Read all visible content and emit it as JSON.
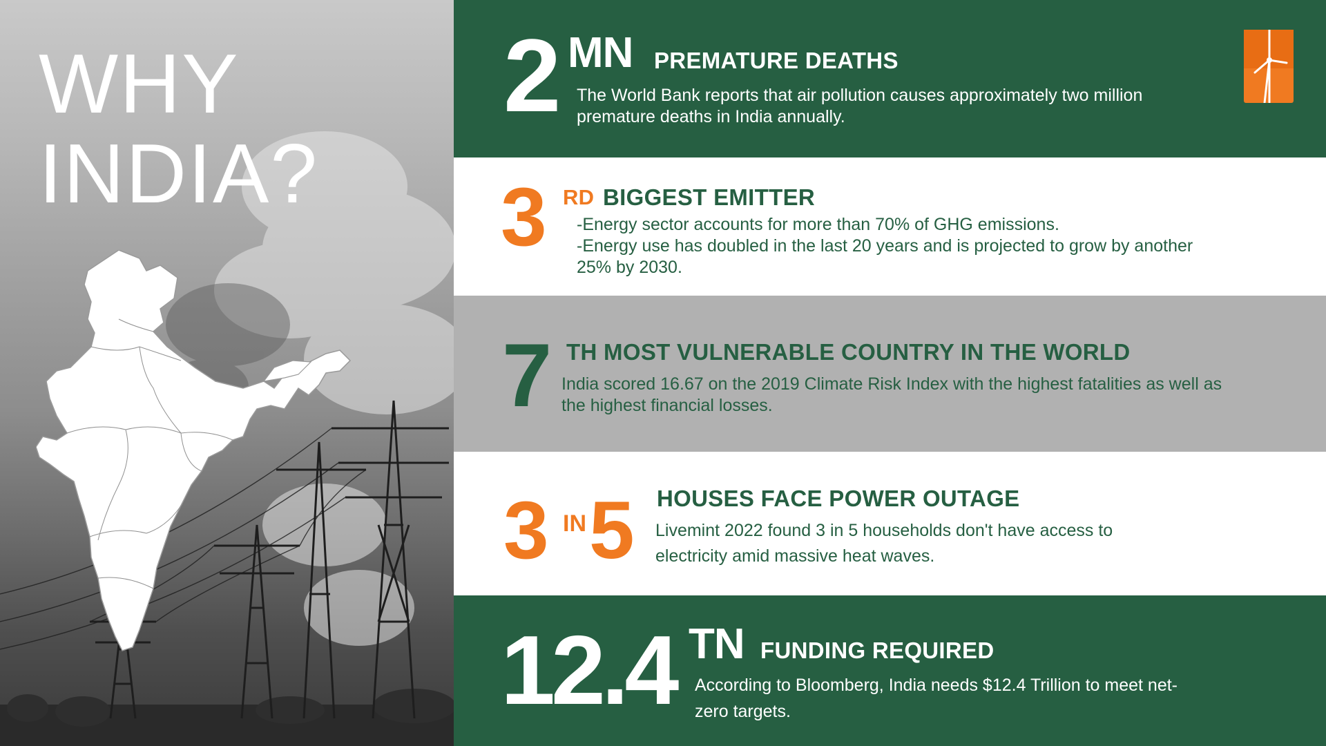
{
  "left": {
    "title_line1": "WHY",
    "title_line2": "INDIA?"
  },
  "stats": [
    {
      "number": "2",
      "suffix": "MN",
      "title": "PREMATURE DEATHS",
      "description": "The World Bank reports that air pollution causes approximately two million premature deaths in India annually."
    },
    {
      "number": "3",
      "suffix": "RD",
      "title": "BIGGEST EMITTER",
      "description_lines": [
        "-Energy sector accounts for more than 70% of GHG emissions.",
        "-Energy use has doubled in the last 20 years and is projected to grow by another 25% by 2030."
      ]
    },
    {
      "number": "7",
      "title": "TH MOST VULNERABLE COUNTRY IN THE WORLD",
      "description": "India scored 16.67 on the 2019 Climate Risk Index with the highest fatalities as well as the highest financial losses."
    },
    {
      "number_a": "3",
      "connector": "IN",
      "number_b": "5",
      "title": "HOUSES FACE POWER OUTAGE",
      "description": "Livemint 2022 found 3 in 5 households don't have access to electricity amid massive heat waves."
    },
    {
      "number": "12.4",
      "suffix": "TN",
      "title": "FUNDING REQUIRED",
      "description": "According to Bloomberg, India needs $12.4 Trillion to meet net-zero targets."
    }
  ],
  "colors": {
    "dark_green": "#265f42",
    "orange": "#f07a21",
    "light_gray": "#b1b1b1",
    "white": "#ffffff"
  },
  "icons": {
    "logo": "wind-turbine-logo",
    "map": "india-map",
    "background": "power-pylons-smoke-photo"
  }
}
